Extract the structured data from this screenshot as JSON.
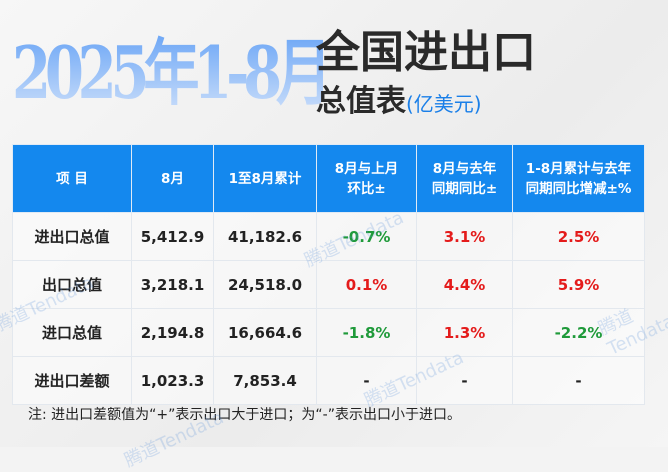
{
  "title": {
    "big": "2025年1-8月",
    "line1": "全国进出口",
    "line2": "总值表",
    "unit": "(亿美元)"
  },
  "table": {
    "headers": [
      "项  目",
      "8月",
      "1至8月累计",
      "8月与上月\n环比±",
      "8月与去年\n同期同比±",
      "1-8月累计与去年\n同期同比增减±%"
    ],
    "rows": [
      {
        "item": "进出口总值",
        "aug": "5,412.9",
        "cum": "41,182.6",
        "mom": "-0.7%",
        "yoy": "3.1%",
        "cum_yoy": "2.5%"
      },
      {
        "item": "出口总值",
        "aug": "3,218.1",
        "cum": "24,518.0",
        "mom": "0.1%",
        "yoy": "4.4%",
        "cum_yoy": "5.9%"
      },
      {
        "item": "进口总值",
        "aug": "2,194.8",
        "cum": "16,664.6",
        "mom": "-1.8%",
        "yoy": "1.3%",
        "cum_yoy": "-2.2%"
      },
      {
        "item": "进出口差额",
        "aug": "1,023.3",
        "cum": "7,853.4",
        "mom": "-",
        "yoy": "-",
        "cum_yoy": "-"
      }
    ]
  },
  "note": "注: 进出口差额值为“+”表示出口大于进口；为“-”表示出口小于进口。",
  "watermark": "腾道Tendata",
  "colors": {
    "header": "#1488ee",
    "positive": "#e41b1b",
    "negative": "#1f9a3a"
  }
}
